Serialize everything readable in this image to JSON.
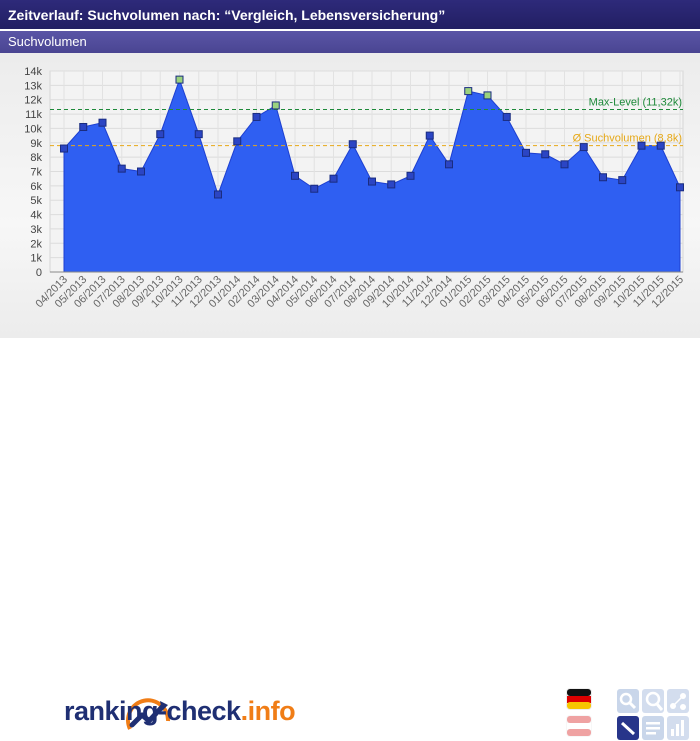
{
  "header": {
    "title": "Zeitverlauf: Suchvolumen nach: “Vergleich, Lebensversicherung”",
    "subtitle": "Suchvolumen"
  },
  "chart_data": {
    "type": "area",
    "categories": [
      "04/2013",
      "05/2013",
      "06/2013",
      "07/2013",
      "08/2013",
      "09/2013",
      "10/2013",
      "11/2013",
      "12/2013",
      "01/2014",
      "02/2014",
      "03/2014",
      "04/2014",
      "05/2014",
      "06/2014",
      "07/2014",
      "08/2014",
      "09/2014",
      "10/2014",
      "11/2014",
      "12/2014",
      "01/2015",
      "02/2015",
      "03/2015",
      "04/2015",
      "05/2015",
      "06/2015",
      "07/2015",
      "08/2015",
      "09/2015",
      "10/2015",
      "11/2015",
      "12/2015"
    ],
    "values": [
      8.6,
      10.1,
      10.4,
      7.2,
      7.0,
      9.6,
      13.4,
      9.6,
      5.4,
      9.1,
      10.8,
      11.6,
      6.7,
      5.8,
      6.5,
      8.9,
      6.3,
      6.1,
      6.7,
      9.5,
      7.5,
      12.6,
      12.3,
      10.8,
      8.3,
      8.2,
      7.5,
      8.7,
      6.6,
      6.4,
      8.8,
      8.8,
      5.9
    ],
    "yticks": [
      "0",
      "1k",
      "2k",
      "3k",
      "4k",
      "5k",
      "6k",
      "7k",
      "8k",
      "9k",
      "10k",
      "11k",
      "12k",
      "13k",
      "14k"
    ],
    "ylim": [
      0,
      14
    ],
    "grid": true,
    "reference_lines": [
      {
        "label": "Max-Level (11,32k)",
        "value": 11.32,
        "color": "#1e8a3a"
      },
      {
        "label": "Ø Suchvolumen (8,8k)",
        "value": 8.8,
        "color": "#e6a817"
      }
    ],
    "colors": {
      "fill": "#2f5ff2",
      "marker": "#2b45c4",
      "marker_highlight": "#9bd27d"
    },
    "highlight_indices": [
      6,
      11,
      21,
      22
    ]
  },
  "footer": {
    "logo_main": "ranking-check",
    "logo_tld": ".info",
    "flags": [
      "germany-flag-icon",
      "austria-flag-icon"
    ],
    "tool_icons": [
      "search-icon",
      "zoom-icon",
      "network-icon",
      "edit-icon",
      "list-icon",
      "bar-chart-icon"
    ]
  }
}
